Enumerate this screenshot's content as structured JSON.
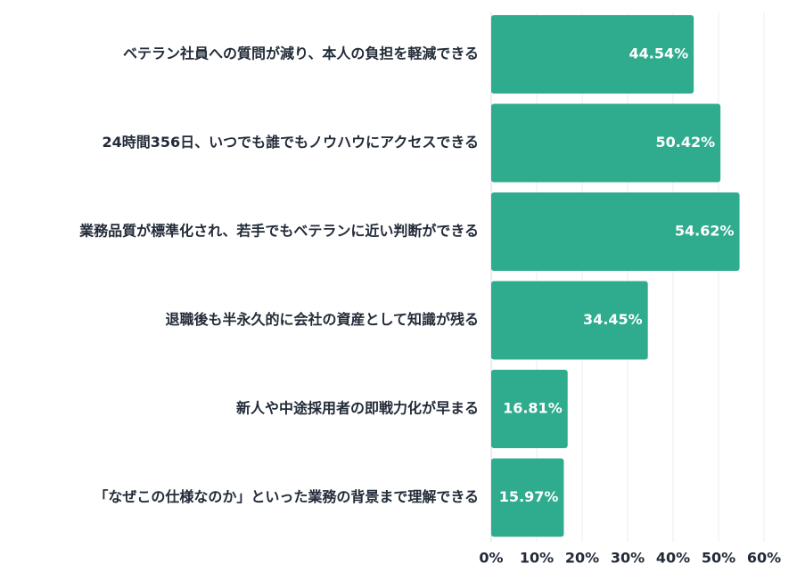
{
  "chart_data": {
    "type": "bar",
    "orientation": "horizontal",
    "title": "",
    "xlabel": "",
    "ylabel": "",
    "categories": [
      "ベテラン社員への質問が減り、本人の負担を軽減できる",
      "24時間356日、いつでも誰でもノウハウにアクセスできる",
      "業務品質が標準化され、若手でもベテランに近い判断ができる",
      "退職後も半永久的に会社の資産として知識が残る",
      "新人や中途採用者の即戦力化が早まる",
      "「なぜこの仕様なのか」といった業務の背景まで理解できる"
    ],
    "values": [
      44.54,
      50.42,
      54.62,
      34.45,
      16.81,
      15.97
    ],
    "value_labels": [
      "44.54%",
      "50.42%",
      "54.62%",
      "34.45%",
      "16.81%",
      "15.97%"
    ],
    "xlim": [
      0,
      60
    ],
    "ticks": [
      0,
      10,
      20,
      30,
      40,
      50,
      60
    ],
    "tick_labels": [
      "0%",
      "10%",
      "20%",
      "30%",
      "40%",
      "50%",
      "60%"
    ],
    "grid": true,
    "bar_color": "#2fab8e",
    "text_color": "#222b38",
    "grid_color": "#e9ecef"
  }
}
